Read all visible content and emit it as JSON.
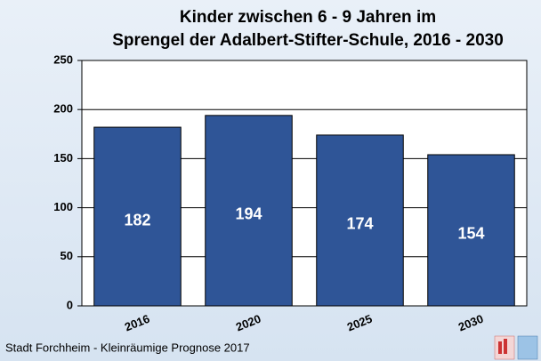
{
  "chart_data": {
    "type": "bar",
    "title": [
      "Kinder zwischen 6 - 9 Jahren im",
      "Sprengel der Adalbert-Stifter-Schule, 2016 - 2030"
    ],
    "categories": [
      "2016",
      "2020",
      "2025",
      "2030"
    ],
    "values": [
      182,
      194,
      174,
      154
    ],
    "color": "#2f5597",
    "ylim": [
      0,
      250
    ],
    "yticks": [
      0,
      50,
      100,
      150,
      200,
      250
    ],
    "grid": true,
    "source": "Stadt Forchheim - Kleinräumige Prognose 2017"
  }
}
